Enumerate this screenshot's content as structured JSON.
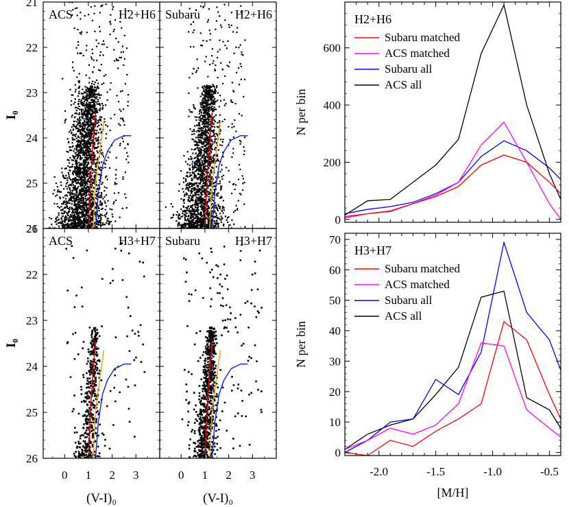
{
  "chart_data": [
    {
      "type": "scatter",
      "panel": "cmd-acs-h2h6",
      "subtitle": "(color-magnitude diagram)",
      "label_left": "ACS",
      "label_right": "H2+H6",
      "xlabel": "(V-I)₀",
      "ylabel": "I₀",
      "xlim": [
        -0.9,
        4.0
      ],
      "ylim": [
        26.0,
        21.0
      ],
      "xticks": [
        "0",
        "1",
        "2",
        "3"
      ],
      "yticks": [
        "21",
        "22",
        "23",
        "24",
        "25",
        "26"
      ],
      "density": "dense",
      "n_points": 2600,
      "isochrones": [
        {
          "color": "#e00000",
          "points": [
            [
              1.0,
              26.0
            ],
            [
              1.08,
              25.0
            ],
            [
              1.18,
              24.2
            ],
            [
              1.3,
              23.45
            ]
          ]
        },
        {
          "color": "#f0a020",
          "points": [
            [
              1.2,
              26.0
            ],
            [
              1.3,
              25.0
            ],
            [
              1.45,
              24.4
            ],
            [
              1.65,
              23.65
            ]
          ]
        },
        {
          "color": "#1030e0",
          "points": [
            [
              1.3,
              26.0
            ],
            [
              1.42,
              25.2
            ],
            [
              1.6,
              24.6
            ],
            [
              1.8,
              24.3
            ],
            [
              2.1,
              24.05
            ],
            [
              2.5,
              23.95
            ],
            [
              2.8,
              23.95
            ]
          ]
        }
      ]
    },
    {
      "type": "scatter",
      "panel": "cmd-subaru-h2h6",
      "subtitle": "(color-magnitude diagram)",
      "label_left": "Subaru",
      "label_right": "H2+H6",
      "xlabel": "(V-I)₀",
      "ylabel": "",
      "xlim": [
        -0.9,
        4.0
      ],
      "ylim": [
        26.0,
        21.0
      ],
      "xticks": [
        "0",
        "1",
        "2",
        "3"
      ],
      "yticks": [],
      "density": "dense",
      "n_points": 2200,
      "isochrones": [
        {
          "color": "#e00000",
          "points": [
            [
              1.0,
              26.0
            ],
            [
              1.08,
              25.0
            ],
            [
              1.18,
              24.2
            ],
            [
              1.3,
              23.45
            ]
          ]
        },
        {
          "color": "#f0a020",
          "points": [
            [
              1.2,
              26.0
            ],
            [
              1.3,
              25.0
            ],
            [
              1.45,
              24.4
            ],
            [
              1.65,
              23.65
            ]
          ]
        },
        {
          "color": "#1030e0",
          "points": [
            [
              1.3,
              26.0
            ],
            [
              1.42,
              25.2
            ],
            [
              1.6,
              24.6
            ],
            [
              1.8,
              24.3
            ],
            [
              2.1,
              24.05
            ],
            [
              2.5,
              23.95
            ],
            [
              2.8,
              23.95
            ]
          ]
        }
      ]
    },
    {
      "type": "scatter",
      "panel": "cmd-acs-h3h7",
      "subtitle": "(color-magnitude diagram)",
      "label_left": "ACS",
      "label_right": "H3+H7",
      "xlabel": "(V-I)₀",
      "ylabel": "I₀",
      "xlim": [
        -0.9,
        4.0
      ],
      "ylim": [
        26.0,
        21.0
      ],
      "xticks": [
        "0",
        "1",
        "2",
        "3"
      ],
      "yticks": [
        "21",
        "22",
        "23",
        "24",
        "25",
        "26"
      ],
      "density": "sparse",
      "n_points": 520,
      "isochrones": [
        {
          "color": "#e00000",
          "points": [
            [
              1.0,
              26.0
            ],
            [
              1.08,
              25.0
            ],
            [
              1.18,
              24.2
            ],
            [
              1.3,
              23.45
            ]
          ]
        },
        {
          "color": "#f0a020",
          "points": [
            [
              1.2,
              26.0
            ],
            [
              1.3,
              25.0
            ],
            [
              1.45,
              24.4
            ],
            [
              1.65,
              23.65
            ]
          ]
        },
        {
          "color": "#1030e0",
          "points": [
            [
              1.3,
              26.0
            ],
            [
              1.42,
              25.2
            ],
            [
              1.6,
              24.6
            ],
            [
              1.8,
              24.3
            ],
            [
              2.1,
              24.05
            ],
            [
              2.5,
              23.95
            ],
            [
              2.8,
              23.95
            ]
          ]
        }
      ]
    },
    {
      "type": "scatter",
      "panel": "cmd-subaru-h3h7",
      "subtitle": "(color-magnitude diagram)",
      "label_left": "Subaru",
      "label_right": "H3+H7",
      "xlabel": "(V-I)₀",
      "ylabel": "",
      "xlim": [
        -0.9,
        4.0
      ],
      "ylim": [
        26.0,
        21.0
      ],
      "xticks": [
        "0",
        "1",
        "2",
        "3"
      ],
      "yticks": [],
      "density": "medium",
      "n_points": 900,
      "isochrones": [
        {
          "color": "#e00000",
          "points": [
            [
              1.0,
              26.0
            ],
            [
              1.08,
              25.0
            ],
            [
              1.18,
              24.2
            ],
            [
              1.3,
              23.45
            ]
          ]
        },
        {
          "color": "#f0a020",
          "points": [
            [
              1.2,
              26.0
            ],
            [
              1.3,
              25.0
            ],
            [
              1.45,
              24.4
            ],
            [
              1.65,
              23.65
            ]
          ]
        },
        {
          "color": "#1030e0",
          "points": [
            [
              1.3,
              26.0
            ],
            [
              1.42,
              25.2
            ],
            [
              1.6,
              24.6
            ],
            [
              1.8,
              24.3
            ],
            [
              2.1,
              24.05
            ],
            [
              2.5,
              23.95
            ],
            [
              2.8,
              23.95
            ]
          ]
        }
      ]
    },
    {
      "type": "line",
      "panel": "mdf-h2h6",
      "title": "H2+H6",
      "xlabel": "",
      "ylabel": "N per bin",
      "xlim": [
        -2.3,
        -0.4
      ],
      "ylim": [
        -10,
        760
      ],
      "xticks": [
        "-2.0",
        "-1.5",
        "-1.0",
        "-0.5"
      ],
      "yticks": [
        "0",
        "200",
        "400",
        "600"
      ],
      "x": [
        -2.3,
        -2.1,
        -1.9,
        -1.7,
        -1.5,
        -1.3,
        -1.1,
        -0.9,
        -0.7,
        -0.5,
        -0.4
      ],
      "series": [
        {
          "name": "Subaru matched",
          "color": "#ff0000",
          "values": [
            10,
            20,
            28,
            55,
            80,
            115,
            190,
            225,
            200,
            130,
            90
          ]
        },
        {
          "name": "ACS matched",
          "color": "#ff00ff",
          "values": [
            5,
            20,
            30,
            55,
            85,
            130,
            260,
            340,
            200,
            55,
            0
          ]
        },
        {
          "name": "Subaru all",
          "color": "#0000ff",
          "values": [
            20,
            35,
            45,
            60,
            90,
            130,
            220,
            275,
            240,
            180,
            140
          ]
        },
        {
          "name": "ACS all",
          "color": "#000000",
          "values": [
            15,
            65,
            70,
            130,
            190,
            280,
            580,
            750,
            400,
            160,
            70
          ]
        }
      ]
    },
    {
      "type": "line",
      "panel": "mdf-h3h7",
      "title": "H3+H7",
      "xlabel": "[M/H]",
      "ylabel": "N per bin",
      "xlim": [
        -2.3,
        -0.4
      ],
      "ylim": [
        -1,
        72
      ],
      "xticks": [
        "-2.0",
        "-1.5",
        "-1.0",
        "-0.5"
      ],
      "yticks": [
        "0",
        "10",
        "20",
        "30",
        "40",
        "50",
        "60",
        "70"
      ],
      "x": [
        -2.3,
        -2.1,
        -1.9,
        -1.7,
        -1.5,
        -1.3,
        -1.1,
        -0.9,
        -0.7,
        -0.5,
        -0.4
      ],
      "series": [
        {
          "name": "Subaru matched",
          "color": "#ff0000",
          "values": [
            0,
            -1,
            4,
            2,
            7,
            11,
            16,
            43,
            37,
            19,
            11
          ]
        },
        {
          "name": "ACS matched",
          "color": "#ff00ff",
          "values": [
            1,
            4,
            8,
            6,
            9,
            16,
            36,
            35,
            14,
            8,
            5
          ]
        },
        {
          "name": "Subaru all",
          "color": "#0000ff",
          "values": [
            0,
            4,
            10,
            11,
            24,
            19,
            33,
            69,
            46,
            37,
            27
          ]
        },
        {
          "name": "ACS all",
          "color": "#000000",
          "values": [
            1,
            6,
            9,
            11,
            19,
            28,
            51,
            53,
            18,
            14,
            8
          ]
        }
      ]
    }
  ]
}
